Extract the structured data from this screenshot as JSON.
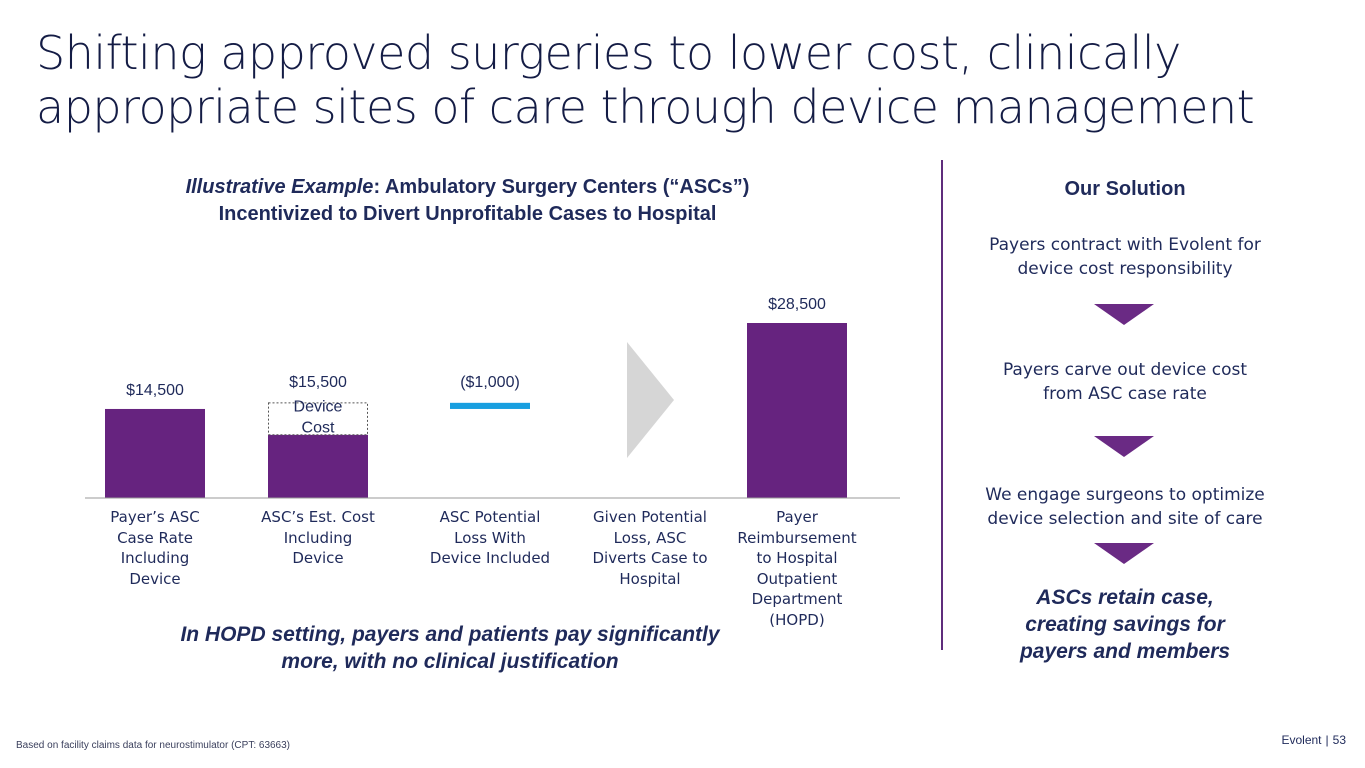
{
  "title": "Shifting approved surgeries to lower cost, clinically appropriate sites of care through device management",
  "chart_heading": {
    "italic_part": "Illustrative Example",
    "rest_line1": ": Ambulatory Surgery Centers (“ASCs”)",
    "line2": "Incentivized to Divert Unprofitable Cases to Hospital"
  },
  "chart_data": {
    "type": "bar",
    "title": "Illustrative Example: Ambulatory Surgery Centers (“ASCs”) Incentivized to Divert Unprofitable Cases to Hospital",
    "categories": [
      "Payer’s ASC Case Rate Including Device",
      "ASC’s Est. Cost Including Device",
      "ASC Potential Loss With Device Included",
      "Given Potential Loss, ASC Diverts Case to Hospital",
      "Payer Reimbursement to Hospital Outpatient Department (HOPD)"
    ],
    "category_lines": [
      [
        "Payer’s ASC",
        "Case Rate",
        "Including",
        "Device"
      ],
      [
        "ASC’s Est. Cost",
        "Including",
        "Device"
      ],
      [
        "ASC Potential",
        "Loss With",
        "Device Included"
      ],
      [
        "Given Potential",
        "Loss, ASC",
        "Diverts Case to",
        "Hospital"
      ],
      [
        "Payer",
        "Reimbursement",
        "to Hospital",
        "Outpatient",
        "Department",
        "(HOPD)"
      ]
    ],
    "bars": [
      {
        "index": 0,
        "kind": "solid",
        "base": 0,
        "value": 14500,
        "label": "$14,500",
        "color": "#66237f"
      },
      {
        "index": 1,
        "kind": "stacked",
        "base": 0,
        "solid_value": 10300,
        "value": 15500,
        "label": "$15,500",
        "color": "#66237f",
        "segment_label_lines": [
          "Device",
          "Cost"
        ]
      },
      {
        "index": 2,
        "kind": "floating",
        "base": 14500,
        "value": 15500,
        "label": "($1,000)",
        "color": "#189fe0"
      },
      {
        "index": 3,
        "kind": "arrow",
        "color": "#d6d6d6"
      },
      {
        "index": 4,
        "kind": "solid",
        "base": 0,
        "value": 28500,
        "label": "$28,500",
        "color": "#66237f"
      }
    ],
    "ylim": [
      0,
      31000
    ],
    "xlabel": "",
    "ylabel": "",
    "grid": false,
    "legend": "none"
  },
  "bottom_note": {
    "line1": "In HOPD setting, payers and patients pay significantly",
    "line2": "more, with no clinical justification"
  },
  "solution": {
    "title": "Our Solution",
    "steps": [
      {
        "line1": "Payers contract with Evolent for",
        "line2": "device cost responsibility"
      },
      {
        "line1": "Payers carve out device cost",
        "line2": "from ASC case rate"
      },
      {
        "line1": "We engage surgeons to optimize",
        "line2": "device selection and site of care"
      }
    ],
    "outcome": {
      "line1": "ASCs retain case,",
      "line2": "creating savings for",
      "line3": "payers and members"
    }
  },
  "footnote": "Based on facility claims data for neurostimulator (CPT: 63663)",
  "footer": {
    "brand": "Evolent",
    "separator": "|",
    "page": "53"
  },
  "colors": {
    "purple": "#66237f",
    "blue": "#189fe0",
    "navy": "#1f2a5a",
    "arrow_gray": "#d6d6d6"
  }
}
